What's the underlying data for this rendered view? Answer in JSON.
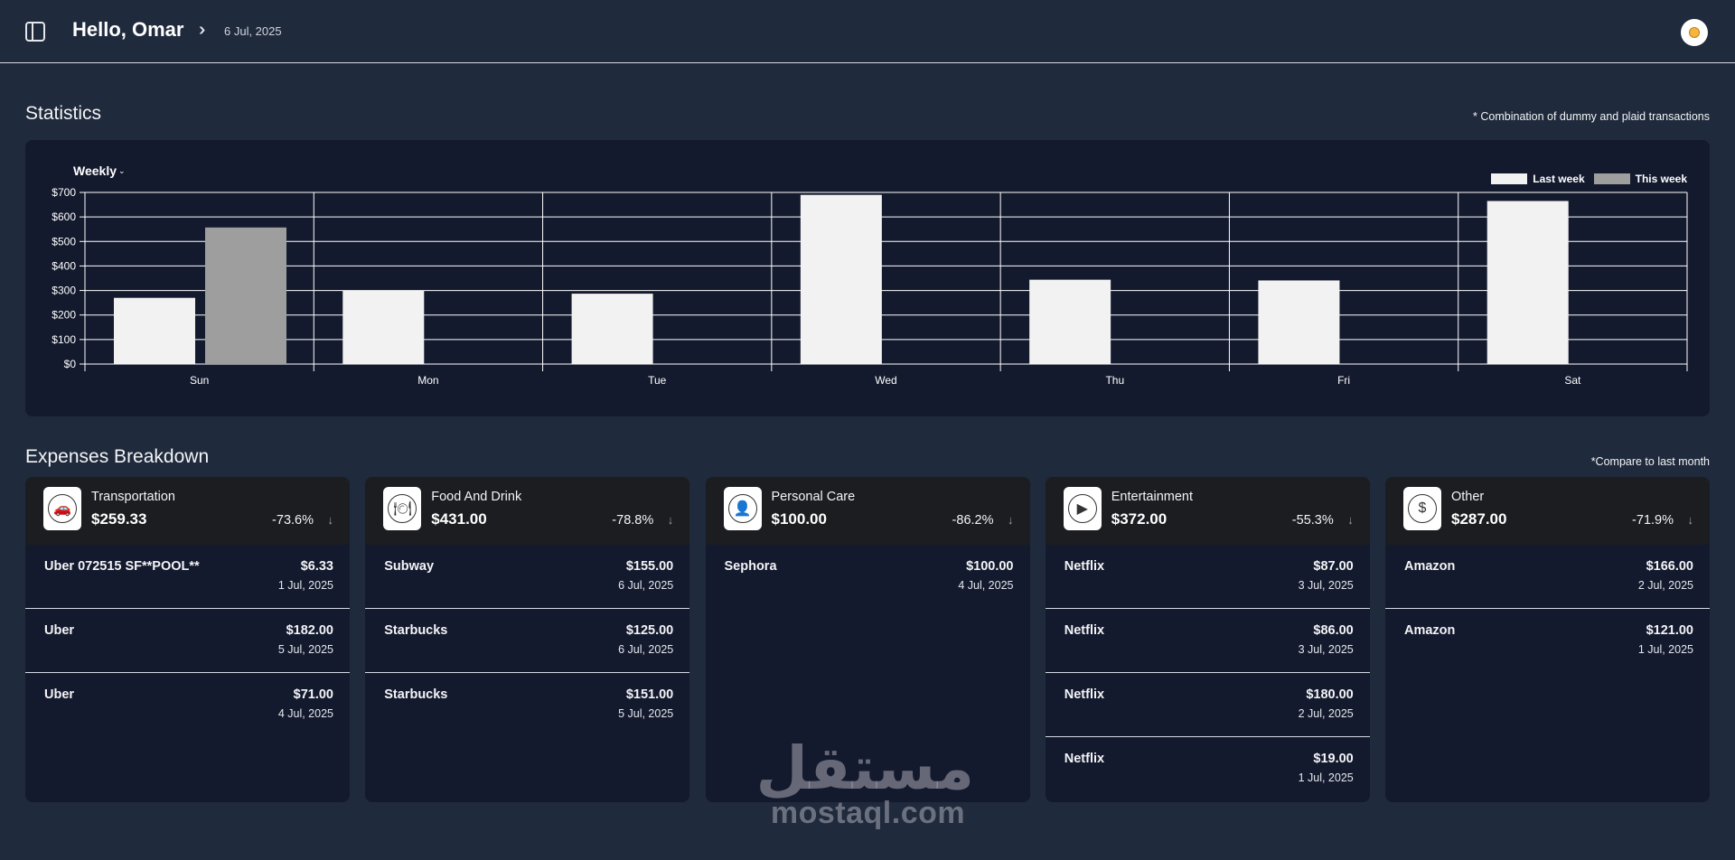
{
  "header": {
    "greeting": "Hello, Omar",
    "date": "6 Jul, 2025"
  },
  "statistics": {
    "title": "Statistics",
    "note": "* Combination of dummy and plaid transactions",
    "period": "Weekly"
  },
  "chart_data": {
    "type": "bar",
    "categories": [
      "Sun",
      "Mon",
      "Tue",
      "Wed",
      "Thu",
      "Fri",
      "Sat"
    ],
    "series": [
      {
        "name": "Last week",
        "values": [
          270,
          300,
          287,
          690,
          344,
          341,
          665
        ],
        "color": "#f2f2f2"
      },
      {
        "name": "This week",
        "values": [
          557,
          0,
          0,
          0,
          0,
          0,
          0
        ],
        "color": "#9e9e9e"
      }
    ],
    "y_ticks": [
      "$0",
      "$100",
      "$200",
      "$300",
      "$400",
      "$500",
      "$600",
      "$700"
    ],
    "ylim": [
      0,
      700
    ],
    "grid": true,
    "legend_position": "top-right"
  },
  "expenses": {
    "title": "Expenses Breakdown",
    "note": "*Compare to last month",
    "categories": [
      {
        "name": "Transportation",
        "total": "$259.33",
        "change": "-73.6%",
        "icon": "car-icon",
        "transactions": [
          {
            "name": "Uber 072515 SF**POOL**",
            "amount": "$6.33",
            "date": "1 Jul, 2025"
          },
          {
            "name": "Uber",
            "amount": "$182.00",
            "date": "5 Jul, 2025"
          },
          {
            "name": "Uber",
            "amount": "$71.00",
            "date": "4 Jul, 2025"
          }
        ]
      },
      {
        "name": "Food And Drink",
        "total": "$431.00",
        "change": "-78.8%",
        "icon": "food-icon",
        "transactions": [
          {
            "name": "Subway",
            "amount": "$155.00",
            "date": "6 Jul, 2025"
          },
          {
            "name": "Starbucks",
            "amount": "$125.00",
            "date": "6 Jul, 2025"
          },
          {
            "name": "Starbucks",
            "amount": "$151.00",
            "date": "5 Jul, 2025"
          }
        ]
      },
      {
        "name": "Personal Care",
        "total": "$100.00",
        "change": "-86.2%",
        "icon": "person-icon",
        "transactions": [
          {
            "name": "Sephora",
            "amount": "$100.00",
            "date": "4 Jul, 2025"
          }
        ]
      },
      {
        "name": "Entertainment",
        "total": "$372.00",
        "change": "-55.3%",
        "icon": "entertainment-icon",
        "transactions": [
          {
            "name": "Netflix",
            "amount": "$87.00",
            "date": "3 Jul, 2025"
          },
          {
            "name": "Netflix",
            "amount": "$86.00",
            "date": "3 Jul, 2025"
          },
          {
            "name": "Netflix",
            "amount": "$180.00",
            "date": "2 Jul, 2025"
          },
          {
            "name": "Netflix",
            "amount": "$19.00",
            "date": "1 Jul, 2025"
          }
        ]
      },
      {
        "name": "Other",
        "total": "$287.00",
        "change": "-71.9%",
        "icon": "dollar-icon",
        "transactions": [
          {
            "name": "Amazon",
            "amount": "$166.00",
            "date": "2 Jul, 2025"
          },
          {
            "name": "Amazon",
            "amount": "$121.00",
            "date": "1 Jul, 2025"
          }
        ]
      }
    ]
  },
  "watermark": {
    "arabic": "مستقل",
    "latin": "mostaql.com"
  }
}
